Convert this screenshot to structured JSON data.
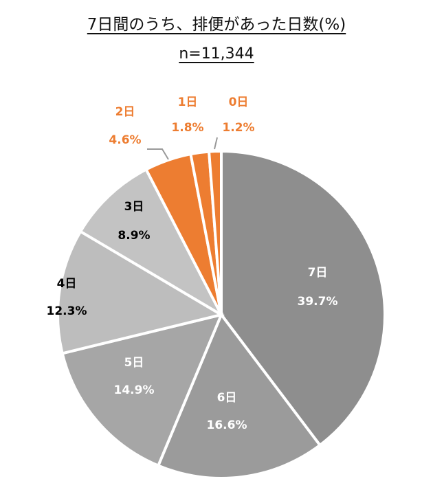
{
  "chart_data": {
    "type": "pie",
    "title": "7日間のうち、排便があった日数(%)",
    "subtitle": "n=11,344",
    "categories": [
      "7日",
      "6日",
      "5日",
      "4日",
      "3日",
      "2日",
      "1日",
      "0日"
    ],
    "values": [
      39.7,
      16.6,
      14.9,
      12.3,
      8.9,
      4.6,
      1.8,
      1.2
    ],
    "value_labels": [
      "39.7%",
      "16.6%",
      "14.9%",
      "12.3%",
      "8.9%",
      "4.6%",
      "1.8%",
      "1.2%"
    ],
    "colors": [
      "#8e8e8e",
      "#9b9b9b",
      "#a6a6a6",
      "#bdbdbd",
      "#c3c3c3",
      "#ed7d31",
      "#ed7d31",
      "#ed7d31"
    ],
    "label_colors": [
      "#ffffff",
      "#ffffff",
      "#ffffff",
      "#000000",
      "#000000",
      "#ed7d31",
      "#ed7d31",
      "#ed7d31"
    ],
    "start": "12 o'clock",
    "direction": "clockwise"
  }
}
